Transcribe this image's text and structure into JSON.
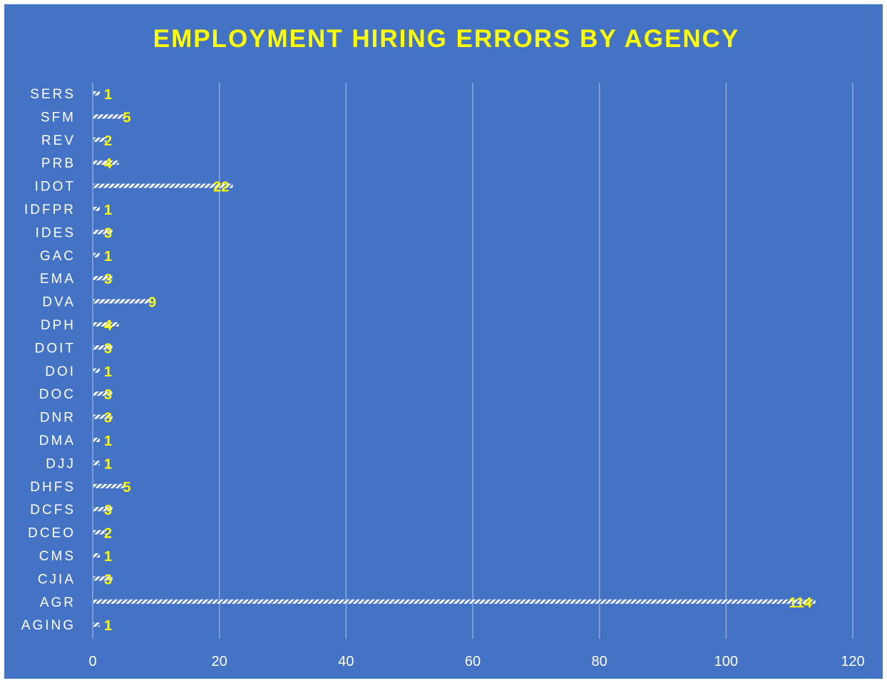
{
  "chart_data": {
    "type": "bar",
    "orientation": "horizontal",
    "title": "EMPLOYMENT HIRING ERRORS BY AGENCY",
    "xlabel": "",
    "ylabel": "",
    "xlim": [
      0,
      120
    ],
    "x_ticks": [
      0,
      20,
      40,
      60,
      80,
      100,
      120
    ],
    "gridlines": "vertical",
    "legend": "none",
    "data_labels": true,
    "categories": [
      "SERS",
      "SFM",
      "REV",
      "PRB",
      "IDOT",
      "IDFPR",
      "IDES",
      "GAC",
      "EMA",
      "DVA",
      "DPH",
      "DOIT",
      "DOI",
      "DOC",
      "DNR",
      "DMA",
      "DJJ",
      "DHFS",
      "DCFS",
      "DCEO",
      "CMS",
      "CJIA",
      "AGR",
      "AGING"
    ],
    "values": [
      1,
      5,
      2,
      4,
      22,
      1,
      3,
      1,
      3,
      9,
      4,
      3,
      1,
      3,
      3,
      1,
      1,
      5,
      3,
      2,
      1,
      3,
      114,
      1
    ]
  },
  "colors": {
    "background": "#4472c4",
    "title": "#ffff00",
    "data_label": "#ffff00",
    "category_label": "#ffffff",
    "tick_label": "#ffffff",
    "gridline": "#8faadc",
    "bar_pattern": "#ffffff"
  }
}
